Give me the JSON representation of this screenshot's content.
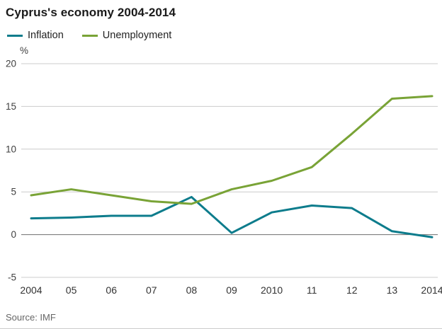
{
  "chart_data": {
    "type": "line",
    "title": "Cyprus's economy 2004-2014",
    "unit_label": "%",
    "categories": [
      "2004",
      "05",
      "06",
      "07",
      "08",
      "09",
      "2010",
      "11",
      "12",
      "13",
      "2014"
    ],
    "series": [
      {
        "name": "Inflation",
        "color": "#0d7c8c",
        "values": [
          1.9,
          2.0,
          2.2,
          2.2,
          4.4,
          0.2,
          2.6,
          3.4,
          3.1,
          0.4,
          -0.3
        ]
      },
      {
        "name": "Unemployment",
        "color": "#79a336",
        "values": [
          4.6,
          5.3,
          4.6,
          3.9,
          3.6,
          5.3,
          6.3,
          7.9,
          11.8,
          15.9,
          16.2
        ]
      }
    ],
    "ylim": [
      -5,
      20
    ],
    "yticks": [
      -5,
      0,
      5,
      10,
      15,
      20
    ],
    "grid": true,
    "legend_position": "top",
    "xlabel": "",
    "ylabel": "%"
  },
  "footer": {
    "source": "Source: IMF"
  }
}
